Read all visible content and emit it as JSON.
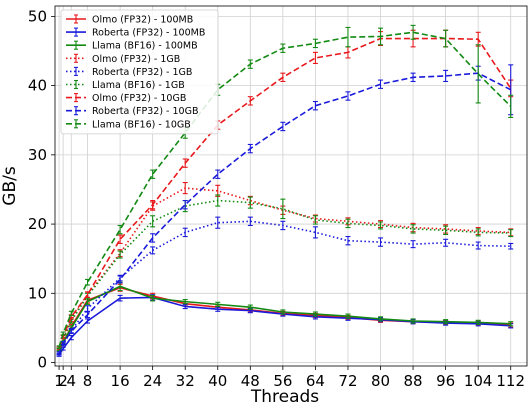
{
  "chart_data": {
    "type": "line",
    "title": "",
    "xlabel": "Threads",
    "ylabel": "GB/s",
    "xlim": [
      0,
      116
    ],
    "ylim": [
      -0.5,
      51.5
    ],
    "xticks": [
      1,
      2,
      4,
      8,
      16,
      24,
      32,
      40,
      48,
      56,
      64,
      72,
      80,
      88,
      96,
      104,
      112
    ],
    "xtick_labels": [
      "1",
      "2",
      "4",
      "8",
      "16",
      "24",
      "32",
      "40",
      "48",
      "56",
      "64",
      "72",
      "80",
      "88",
      "96",
      "104",
      "112"
    ],
    "yticks": [
      0,
      10,
      20,
      30,
      40,
      50
    ],
    "grid": true,
    "legend_position": "top-left",
    "x": [
      1,
      2,
      4,
      8,
      16,
      24,
      32,
      40,
      48,
      56,
      64,
      72,
      80,
      88,
      96,
      104,
      112
    ],
    "series": [
      {
        "name": "Olmo (FP32) - 100MB",
        "color": "#e8191c",
        "style": "solid",
        "values": [
          1.8,
          2.8,
          5.2,
          9.0,
          10.8,
          9.6,
          8.5,
          8.0,
          7.6,
          7.1,
          6.8,
          6.5,
          6.1,
          5.9,
          5.8,
          5.7,
          5.4
        ],
        "errors": [
          0.2,
          0.2,
          0.3,
          0.4,
          0.5,
          0.4,
          0.3,
          0.3,
          0.3,
          0.3,
          0.3,
          0.3,
          0.3,
          0.3,
          0.3,
          0.3,
          0.3
        ]
      },
      {
        "name": "Roberta (FP32) - 100MB",
        "color": "#1a1adb",
        "style": "solid",
        "values": [
          1.1,
          2.0,
          3.6,
          6.0,
          9.3,
          9.4,
          8.1,
          7.7,
          7.5,
          7.0,
          6.6,
          6.4,
          6.2,
          5.9,
          5.7,
          5.6,
          5.3
        ],
        "errors": [
          0.2,
          0.2,
          0.3,
          0.3,
          0.4,
          0.4,
          0.3,
          0.3,
          0.3,
          0.3,
          0.3,
          0.3,
          0.3,
          0.3,
          0.3,
          0.3,
          0.3
        ]
      },
      {
        "name": "Llama (BF16) - 100MB",
        "color": "#138a13",
        "style": "solid",
        "values": [
          1.9,
          2.9,
          5.0,
          8.8,
          11.0,
          9.3,
          8.8,
          8.4,
          8.0,
          7.3,
          7.0,
          6.7,
          6.3,
          6.0,
          5.9,
          5.8,
          5.6
        ],
        "errors": [
          0.2,
          0.2,
          0.3,
          0.4,
          0.6,
          0.4,
          0.3,
          0.3,
          0.3,
          0.3,
          0.3,
          0.3,
          0.3,
          0.3,
          0.3,
          0.3,
          0.3
        ]
      },
      {
        "name": "Olmo (FP32) - 1GB",
        "color": "#e8191c",
        "style": "dotted",
        "values": [
          1.9,
          3.3,
          6.2,
          9.8,
          15.8,
          22.6,
          25.2,
          24.8,
          23.4,
          22.0,
          20.8,
          20.4,
          20.0,
          19.5,
          19.3,
          19.0,
          18.8
        ],
        "errors": [
          0.2,
          0.2,
          0.3,
          0.4,
          0.5,
          0.6,
          0.8,
          0.8,
          0.6,
          0.6,
          0.5,
          0.5,
          0.5,
          0.6,
          0.6,
          0.5,
          0.5
        ]
      },
      {
        "name": "Roberta (FP32) - 1GB",
        "color": "#1a1adb",
        "style": "dotted",
        "values": [
          1.4,
          2.6,
          4.6,
          7.8,
          12.2,
          16.2,
          18.8,
          20.2,
          20.4,
          19.8,
          18.8,
          17.6,
          17.4,
          17.1,
          17.3,
          16.9,
          16.8
        ],
        "errors": [
          0.2,
          0.2,
          0.3,
          0.4,
          0.4,
          0.5,
          0.6,
          0.8,
          0.6,
          0.6,
          0.8,
          0.6,
          0.6,
          0.5,
          0.5,
          0.5,
          0.4
        ]
      },
      {
        "name": "Llama (BF16) - 1GB",
        "color": "#138a13",
        "style": "dotted",
        "values": [
          1.9,
          3.3,
          6.0,
          9.6,
          15.6,
          20.4,
          22.6,
          23.4,
          23.1,
          22.2,
          20.6,
          20.1,
          19.8,
          19.3,
          19.1,
          18.8,
          18.7
        ],
        "errors": [
          0.2,
          0.2,
          0.3,
          0.4,
          0.5,
          0.8,
          0.8,
          0.8,
          0.8,
          1.4,
          0.6,
          0.6,
          0.5,
          0.6,
          0.6,
          0.5,
          0.5
        ]
      },
      {
        "name": "Olmo (FP32) - 10GB",
        "color": "#e8191c",
        "style": "dashed",
        "values": [
          2.1,
          3.7,
          6.6,
          9.8,
          17.8,
          22.8,
          28.8,
          34.3,
          37.8,
          41.2,
          44.0,
          44.8,
          46.8,
          46.8,
          46.8,
          46.7,
          39.6
        ],
        "errors": [
          0.2,
          0.2,
          0.3,
          0.4,
          0.6,
          0.6,
          0.6,
          0.6,
          0.6,
          0.6,
          0.8,
          0.8,
          1.0,
          1.2,
          1.2,
          1.0,
          1.2
        ]
      },
      {
        "name": "Roberta (FP32) - 10GB",
        "color": "#1a1adb",
        "style": "dashed",
        "values": [
          1.3,
          2.8,
          4.5,
          6.9,
          12.0,
          18.0,
          22.8,
          27.2,
          30.9,
          34.1,
          37.1,
          38.5,
          40.2,
          41.2,
          41.4,
          41.8,
          39.4
        ],
        "errors": [
          0.2,
          0.2,
          0.3,
          0.4,
          0.5,
          0.6,
          0.6,
          0.6,
          0.6,
          0.6,
          0.6,
          0.6,
          0.6,
          0.6,
          0.8,
          1.0,
          3.6
        ]
      },
      {
        "name": "Llama (BF16) - 10GB",
        "color": "#138a13",
        "style": "dashed",
        "values": [
          2.2,
          4.2,
          7.1,
          11.6,
          19.2,
          27.2,
          33.2,
          39.4,
          43.1,
          45.4,
          46.1,
          47.0,
          47.1,
          47.7,
          46.8,
          41.7,
          37.0
        ],
        "errors": [
          0.2,
          0.2,
          0.3,
          0.4,
          0.6,
          0.6,
          0.8,
          0.8,
          0.6,
          0.6,
          0.6,
          1.4,
          1.2,
          1.0,
          1.2,
          4.2,
          1.6
        ]
      }
    ]
  }
}
